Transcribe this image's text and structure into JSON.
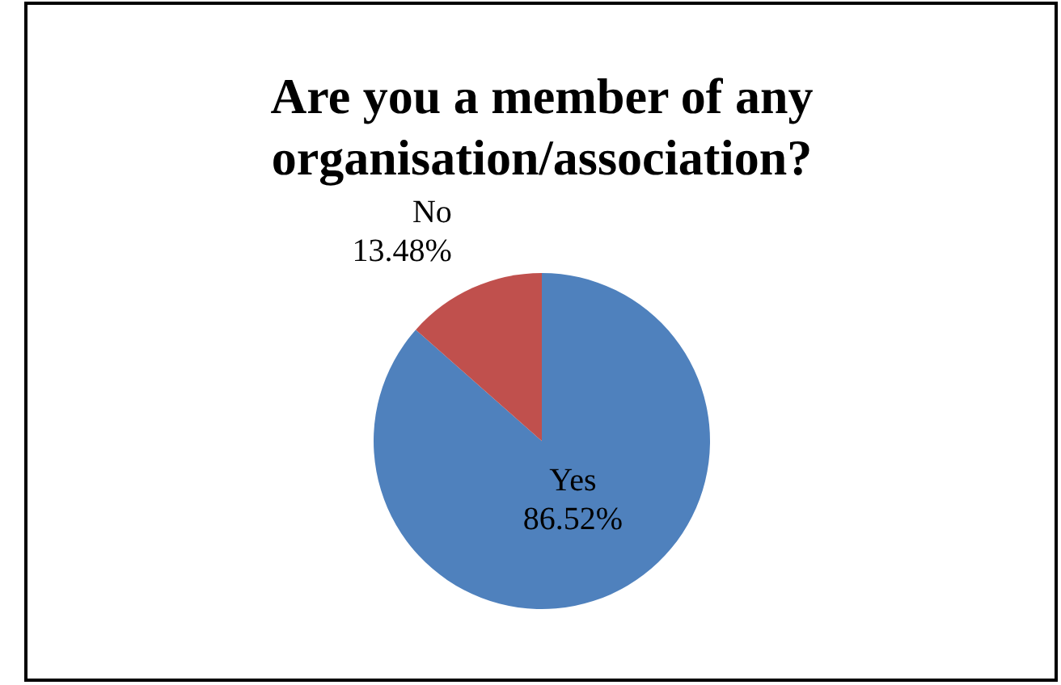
{
  "chart_data": {
    "type": "pie",
    "title": "Are you a member of any organisation/association?",
    "categories": [
      "Yes",
      "No"
    ],
    "values": [
      86.52,
      13.48
    ],
    "value_labels": [
      "86.52%",
      "13.48%"
    ],
    "colors": [
      "#4f81bd",
      "#c0504d"
    ]
  }
}
